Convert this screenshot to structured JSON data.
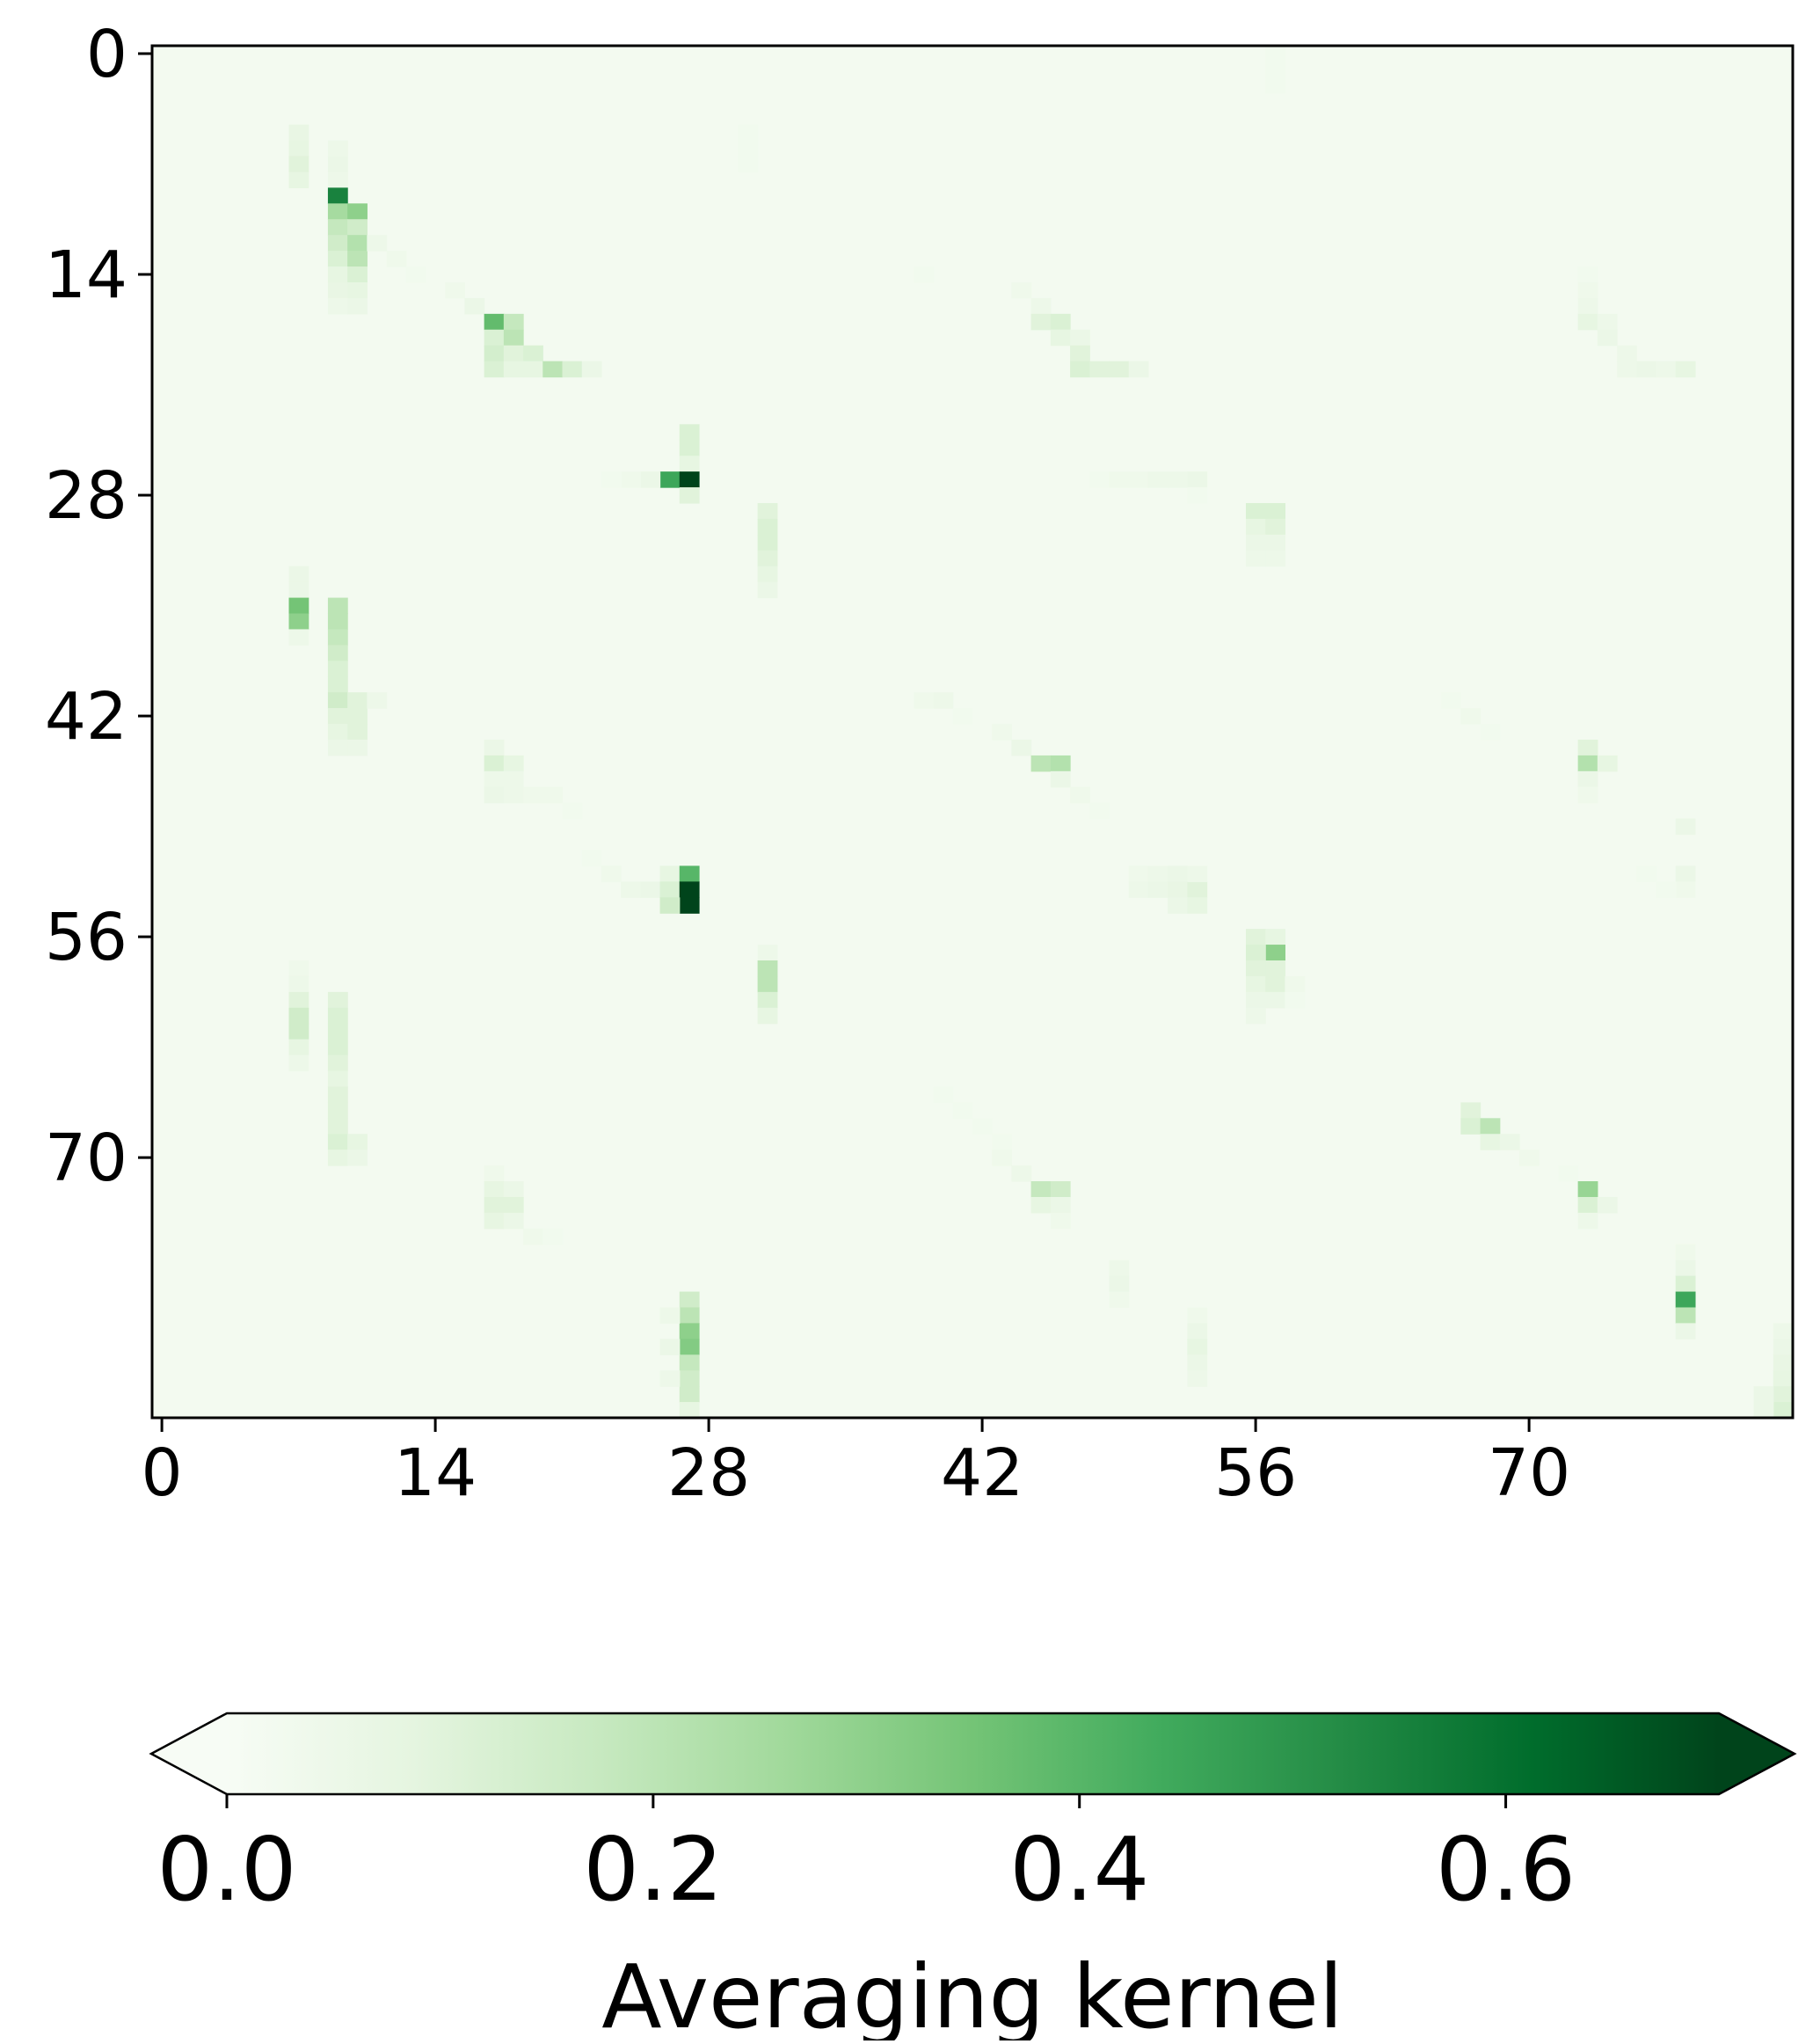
{
  "chart_data": {
    "type": "heatmap",
    "title": "",
    "xlabel": "",
    "ylabel": "",
    "colormap": "Greens",
    "colorbar": {
      "label": "Averaging kernel",
      "vmin": 0.0,
      "vmax": 0.7,
      "ticks": [
        0.0,
        0.2,
        0.4,
        0.6
      ],
      "tick_labels": [
        "0.0",
        "0.2",
        "0.4",
        "0.6"
      ],
      "extend": "both",
      "orientation": "horizontal",
      "placement": "bottom"
    },
    "shape": {
      "rows": 87,
      "cols": 84
    },
    "xlim": [
      -0.5,
      83.5
    ],
    "ylim": [
      86.5,
      -0.5
    ],
    "x_ticks": [
      0,
      14,
      28,
      42,
      56,
      70
    ],
    "x_tick_labels": [
      "0",
      "14",
      "28",
      "42",
      "56",
      "70"
    ],
    "y_ticks": [
      0,
      14,
      28,
      42,
      56,
      70
    ],
    "y_tick_labels": [
      "0",
      "14",
      "28",
      "42",
      "56",
      "70"
    ],
    "background_value": 0.02,
    "cells": [
      [
        5,
        7,
        0.07
      ],
      [
        6,
        7,
        0.08
      ],
      [
        7,
        7,
        0.1
      ],
      [
        8,
        7,
        0.08
      ],
      [
        6,
        9,
        0.05
      ],
      [
        7,
        9,
        0.06
      ],
      [
        8,
        9,
        0.05
      ],
      [
        9,
        9,
        0.55
      ],
      [
        10,
        9,
        0.25
      ],
      [
        10,
        10,
        0.3
      ],
      [
        11,
        9,
        0.18
      ],
      [
        11,
        10,
        0.15
      ],
      [
        12,
        9,
        0.15
      ],
      [
        12,
        10,
        0.22
      ],
      [
        13,
        9,
        0.12
      ],
      [
        13,
        10,
        0.2
      ],
      [
        14,
        9,
        0.08
      ],
      [
        14,
        10,
        0.12
      ],
      [
        15,
        9,
        0.07
      ],
      [
        15,
        10,
        0.08
      ],
      [
        16,
        9,
        0.05
      ],
      [
        16,
        10,
        0.06
      ],
      [
        12,
        11,
        0.05
      ],
      [
        13,
        12,
        0.04
      ],
      [
        14,
        13,
        0.03
      ],
      [
        15,
        15,
        0.04
      ],
      [
        16,
        16,
        0.06
      ],
      [
        17,
        17,
        0.38
      ],
      [
        17,
        18,
        0.18
      ],
      [
        18,
        17,
        0.12
      ],
      [
        18,
        18,
        0.2
      ],
      [
        19,
        17,
        0.14
      ],
      [
        19,
        18,
        0.1
      ],
      [
        19,
        19,
        0.12
      ],
      [
        20,
        17,
        0.12
      ],
      [
        20,
        18,
        0.08
      ],
      [
        20,
        19,
        0.08
      ],
      [
        20,
        20,
        0.2
      ],
      [
        20,
        21,
        0.12
      ],
      [
        20,
        22,
        0.06
      ],
      [
        14,
        39,
        0.03
      ],
      [
        15,
        44,
        0.04
      ],
      [
        16,
        45,
        0.05
      ],
      [
        17,
        45,
        0.1
      ],
      [
        17,
        46,
        0.12
      ],
      [
        18,
        46,
        0.08
      ],
      [
        18,
        47,
        0.06
      ],
      [
        19,
        47,
        0.1
      ],
      [
        20,
        47,
        0.12
      ],
      [
        20,
        48,
        0.1
      ],
      [
        20,
        49,
        0.1
      ],
      [
        20,
        50,
        0.06
      ],
      [
        14,
        73,
        0.03
      ],
      [
        15,
        73,
        0.04
      ],
      [
        16,
        73,
        0.05
      ],
      [
        17,
        73,
        0.08
      ],
      [
        17,
        74,
        0.05
      ],
      [
        18,
        74,
        0.06
      ],
      [
        19,
        75,
        0.05
      ],
      [
        20,
        75,
        0.05
      ],
      [
        20,
        76,
        0.06
      ],
      [
        20,
        77,
        0.05
      ],
      [
        20,
        78,
        0.08
      ],
      [
        24,
        27,
        0.12
      ],
      [
        25,
        27,
        0.12
      ],
      [
        26,
        27,
        0.08
      ],
      [
        27,
        26,
        0.45
      ],
      [
        27,
        27,
        0.72
      ],
      [
        27,
        25,
        0.06
      ],
      [
        27,
        24,
        0.04
      ],
      [
        27,
        23,
        0.03
      ],
      [
        28,
        27,
        0.1
      ],
      [
        27,
        48,
        0.03
      ],
      [
        27,
        49,
        0.04
      ],
      [
        27,
        50,
        0.04
      ],
      [
        27,
        51,
        0.05
      ],
      [
        27,
        52,
        0.05
      ],
      [
        27,
        53,
        0.06
      ],
      [
        28,
        53,
        0.03
      ],
      [
        29,
        31,
        0.1
      ],
      [
        30,
        31,
        0.12
      ],
      [
        31,
        31,
        0.12
      ],
      [
        32,
        31,
        0.1
      ],
      [
        33,
        31,
        0.08
      ],
      [
        34,
        31,
        0.06
      ],
      [
        29,
        56,
        0.12
      ],
      [
        29,
        57,
        0.12
      ],
      [
        30,
        56,
        0.08
      ],
      [
        30,
        57,
        0.1
      ],
      [
        31,
        56,
        0.06
      ],
      [
        31,
        57,
        0.06
      ],
      [
        32,
        56,
        0.05
      ],
      [
        32,
        57,
        0.05
      ],
      [
        33,
        7,
        0.06
      ],
      [
        34,
        7,
        0.06
      ],
      [
        35,
        7,
        0.35
      ],
      [
        36,
        7,
        0.3
      ],
      [
        37,
        7,
        0.05
      ],
      [
        35,
        9,
        0.2
      ],
      [
        36,
        9,
        0.2
      ],
      [
        37,
        9,
        0.18
      ],
      [
        38,
        9,
        0.15
      ],
      [
        39,
        9,
        0.12
      ],
      [
        40,
        9,
        0.12
      ],
      [
        41,
        9,
        0.15
      ],
      [
        41,
        10,
        0.1
      ],
      [
        42,
        9,
        0.1
      ],
      [
        42,
        10,
        0.1
      ],
      [
        43,
        9,
        0.08
      ],
      [
        43,
        10,
        0.1
      ],
      [
        44,
        9,
        0.06
      ],
      [
        44,
        10,
        0.06
      ],
      [
        41,
        11,
        0.05
      ],
      [
        41,
        39,
        0.04
      ],
      [
        41,
        40,
        0.05
      ],
      [
        42,
        41,
        0.03
      ],
      [
        43,
        43,
        0.04
      ],
      [
        44,
        44,
        0.06
      ],
      [
        45,
        45,
        0.2
      ],
      [
        45,
        46,
        0.22
      ],
      [
        46,
        46,
        0.06
      ],
      [
        47,
        47,
        0.04
      ],
      [
        48,
        48,
        0.03
      ],
      [
        41,
        66,
        0.03
      ],
      [
        42,
        67,
        0.04
      ],
      [
        43,
        68,
        0.03
      ],
      [
        44,
        73,
        0.1
      ],
      [
        45,
        73,
        0.22
      ],
      [
        45,
        74,
        0.08
      ],
      [
        46,
        73,
        0.06
      ],
      [
        47,
        73,
        0.04
      ],
      [
        44,
        17,
        0.06
      ],
      [
        45,
        17,
        0.12
      ],
      [
        45,
        18,
        0.08
      ],
      [
        46,
        17,
        0.05
      ],
      [
        46,
        18,
        0.05
      ],
      [
        47,
        17,
        0.06
      ],
      [
        47,
        18,
        0.05
      ],
      [
        47,
        19,
        0.04
      ],
      [
        47,
        20,
        0.04
      ],
      [
        48,
        21,
        0.03
      ],
      [
        49,
        78,
        0.06
      ],
      [
        52,
        78,
        0.06
      ],
      [
        53,
        78,
        0.04
      ],
      [
        52,
        76,
        0.03
      ],
      [
        53,
        77,
        0.03
      ],
      [
        51,
        22,
        0.03
      ],
      [
        52,
        23,
        0.04
      ],
      [
        53,
        24,
        0.05
      ],
      [
        53,
        25,
        0.06
      ],
      [
        52,
        26,
        0.08
      ],
      [
        53,
        26,
        0.12
      ],
      [
        52,
        27,
        0.4
      ],
      [
        53,
        27,
        0.7
      ],
      [
        54,
        27,
        0.72
      ],
      [
        54,
        26,
        0.15
      ],
      [
        52,
        50,
        0.04
      ],
      [
        52,
        51,
        0.05
      ],
      [
        52,
        52,
        0.06
      ],
      [
        53,
        50,
        0.05
      ],
      [
        53,
        51,
        0.06
      ],
      [
        53,
        52,
        0.07
      ],
      [
        53,
        53,
        0.1
      ],
      [
        54,
        52,
        0.06
      ],
      [
        54,
        53,
        0.08
      ],
      [
        52,
        53,
        0.05
      ],
      [
        56,
        56,
        0.1
      ],
      [
        56,
        57,
        0.08
      ],
      [
        57,
        57,
        0.3
      ],
      [
        57,
        56,
        0.12
      ],
      [
        58,
        56,
        0.1
      ],
      [
        58,
        57,
        0.1
      ],
      [
        59,
        56,
        0.08
      ],
      [
        59,
        57,
        0.1
      ],
      [
        60,
        56,
        0.06
      ],
      [
        60,
        57,
        0.06
      ],
      [
        61,
        56,
        0.05
      ],
      [
        59,
        58,
        0.04
      ],
      [
        60,
        58,
        0.03
      ],
      [
        57,
        31,
        0.05
      ],
      [
        58,
        31,
        0.2
      ],
      [
        59,
        31,
        0.2
      ],
      [
        60,
        31,
        0.12
      ],
      [
        61,
        31,
        0.08
      ],
      [
        58,
        7,
        0.04
      ],
      [
        59,
        7,
        0.05
      ],
      [
        60,
        7,
        0.1
      ],
      [
        61,
        7,
        0.15
      ],
      [
        62,
        7,
        0.15
      ],
      [
        63,
        7,
        0.08
      ],
      [
        64,
        7,
        0.05
      ],
      [
        60,
        9,
        0.1
      ],
      [
        61,
        9,
        0.12
      ],
      [
        62,
        9,
        0.12
      ],
      [
        63,
        9,
        0.12
      ],
      [
        64,
        9,
        0.1
      ],
      [
        65,
        9,
        0.08
      ],
      [
        66,
        9,
        0.1
      ],
      [
        67,
        9,
        0.1
      ],
      [
        68,
        9,
        0.1
      ],
      [
        69,
        9,
        0.12
      ],
      [
        69,
        10,
        0.08
      ],
      [
        70,
        9,
        0.08
      ],
      [
        70,
        10,
        0.06
      ],
      [
        66,
        40,
        0.03
      ],
      [
        67,
        41,
        0.03
      ],
      [
        68,
        42,
        0.03
      ],
      [
        69,
        43,
        0.03
      ],
      [
        70,
        43,
        0.04
      ],
      [
        71,
        44,
        0.05
      ],
      [
        72,
        45,
        0.18
      ],
      [
        72,
        46,
        0.15
      ],
      [
        73,
        45,
        0.08
      ],
      [
        73,
        46,
        0.06
      ],
      [
        74,
        46,
        0.04
      ],
      [
        67,
        67,
        0.1
      ],
      [
        68,
        67,
        0.12
      ],
      [
        68,
        68,
        0.2
      ],
      [
        69,
        68,
        0.08
      ],
      [
        69,
        69,
        0.06
      ],
      [
        70,
        70,
        0.04
      ],
      [
        71,
        72,
        0.03
      ],
      [
        72,
        73,
        0.28
      ],
      [
        73,
        73,
        0.12
      ],
      [
        73,
        74,
        0.06
      ],
      [
        74,
        73,
        0.05
      ],
      [
        71,
        17,
        0.04
      ],
      [
        72,
        17,
        0.08
      ],
      [
        72,
        18,
        0.06
      ],
      [
        73,
        17,
        0.1
      ],
      [
        73,
        18,
        0.1
      ],
      [
        74,
        17,
        0.08
      ],
      [
        74,
        18,
        0.06
      ],
      [
        75,
        19,
        0.04
      ],
      [
        75,
        20,
        0.03
      ],
      [
        77,
        49,
        0.05
      ],
      [
        78,
        49,
        0.06
      ],
      [
        79,
        49,
        0.04
      ],
      [
        80,
        53,
        0.04
      ],
      [
        81,
        53,
        0.06
      ],
      [
        82,
        53,
        0.08
      ],
      [
        83,
        53,
        0.06
      ],
      [
        84,
        53,
        0.05
      ],
      [
        76,
        78,
        0.04
      ],
      [
        77,
        78,
        0.06
      ],
      [
        78,
        78,
        0.12
      ],
      [
        79,
        78,
        0.45
      ],
      [
        80,
        78,
        0.2
      ],
      [
        81,
        78,
        0.06
      ],
      [
        79,
        27,
        0.15
      ],
      [
        80,
        27,
        0.2
      ],
      [
        81,
        27,
        0.3
      ],
      [
        82,
        27,
        0.32
      ],
      [
        83,
        27,
        0.18
      ],
      [
        84,
        27,
        0.15
      ],
      [
        85,
        27,
        0.15
      ],
      [
        86,
        27,
        0.08
      ],
      [
        80,
        26,
        0.05
      ],
      [
        82,
        26,
        0.06
      ],
      [
        84,
        26,
        0.05
      ],
      [
        81,
        83,
        0.05
      ],
      [
        82,
        83,
        0.06
      ],
      [
        83,
        83,
        0.07
      ],
      [
        84,
        83,
        0.08
      ],
      [
        85,
        83,
        0.1
      ],
      [
        86,
        83,
        0.12
      ],
      [
        85,
        82,
        0.06
      ],
      [
        86,
        82,
        0.06
      ],
      [
        5,
        30,
        0.03
      ],
      [
        6,
        30,
        0.03
      ],
      [
        7,
        30,
        0.03
      ],
      [
        0,
        57,
        0.03
      ],
      [
        1,
        57,
        0.03
      ],
      [
        2,
        57,
        0.03
      ]
    ]
  }
}
